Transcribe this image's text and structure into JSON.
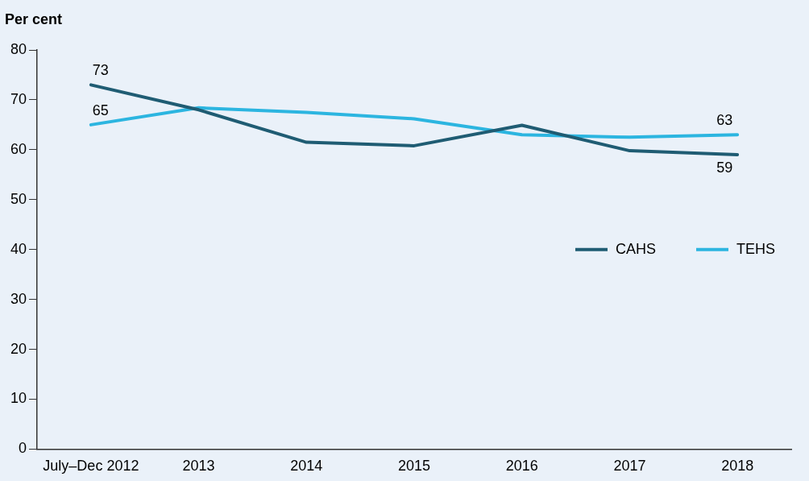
{
  "chart_data": {
    "type": "line",
    "ylabel": "Per cent",
    "categories": [
      "July–Dec 2012",
      "2013",
      "2014",
      "2015",
      "2016",
      "2017",
      "2018"
    ],
    "series": [
      {
        "name": "CAHS",
        "color": "#1f5c73",
        "values": [
          73,
          68.0,
          61.5,
          60.8,
          64.9,
          59.8,
          59
        ],
        "value_labels": [
          "73",
          null,
          null,
          null,
          null,
          null,
          "59"
        ]
      },
      {
        "name": "TEHS",
        "color": "#2cb5e0",
        "values": [
          65,
          68.4,
          67.5,
          66.2,
          63.0,
          62.5,
          63
        ],
        "value_labels": [
          "65",
          null,
          null,
          null,
          null,
          null,
          "63"
        ]
      }
    ],
    "ylim": [
      0,
      80
    ],
    "yticks": [
      0,
      10,
      20,
      30,
      40,
      50,
      60,
      70,
      80
    ],
    "grid": false,
    "legend": "center right",
    "marker": "none"
  }
}
